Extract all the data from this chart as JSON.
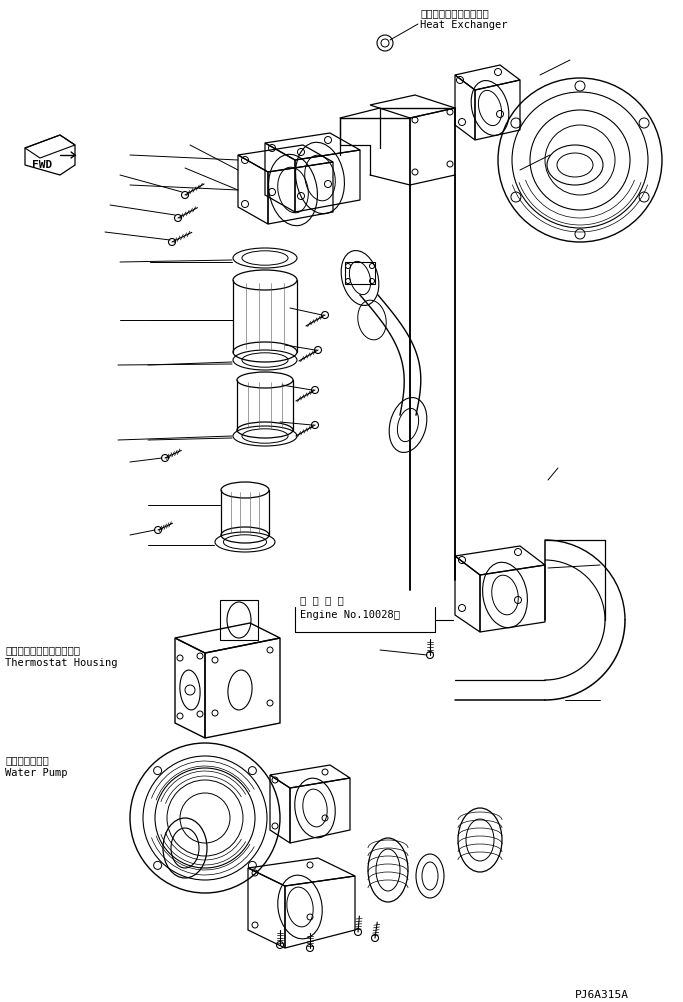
{
  "background_color": "#ffffff",
  "line_color": "#000000",
  "part_number": "PJ6A315A",
  "labels": {
    "heat_exchanger_jp": "ヒートエクスチェンジャ",
    "heat_exchanger_en": "Heat Exchanger",
    "thermostat_jp": "サーモスタットハウジング",
    "thermostat_en": "Thermostat Housing",
    "water_pump_jp": "ウォータポンプ",
    "water_pump_en": "Water Pump",
    "engine_no_jp": "適 用 号 機",
    "engine_no_en": "Engine No.10028～",
    "fwd": "FWD"
  }
}
